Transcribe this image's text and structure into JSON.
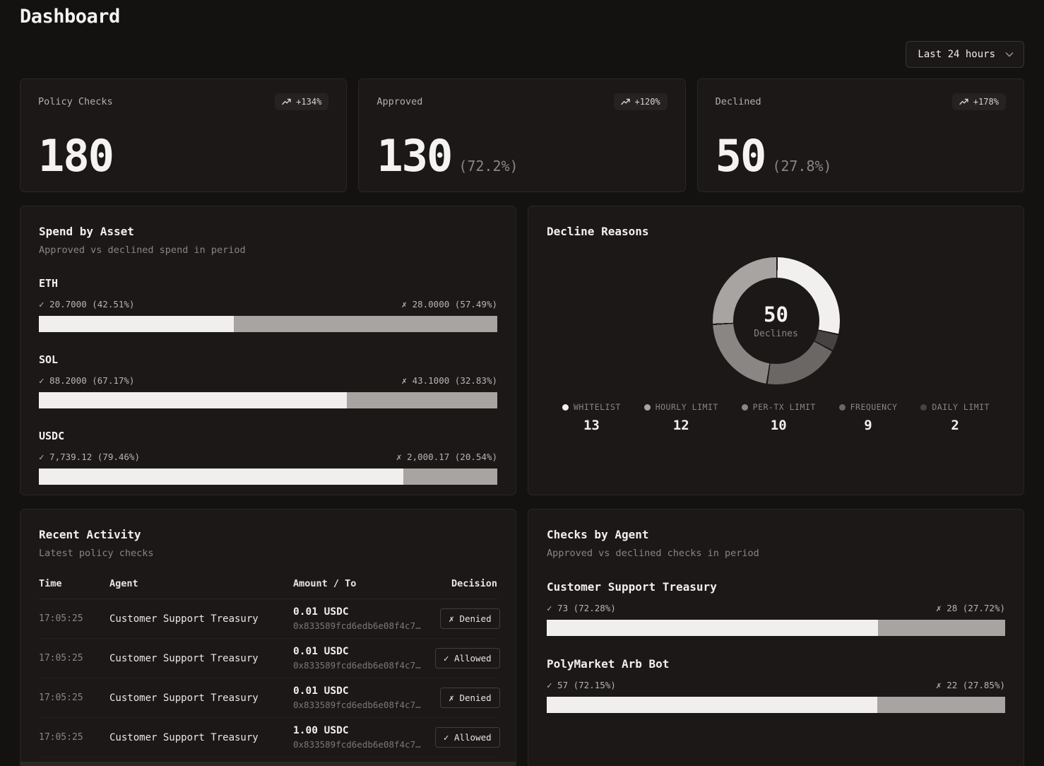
{
  "page": {
    "title": "Dashboard"
  },
  "time_filter": {
    "value": "Last 24 hours"
  },
  "stats": [
    {
      "label": "Policy Checks",
      "value": "180",
      "pct": "",
      "delta": "+134%"
    },
    {
      "label": "Approved",
      "value": "130",
      "pct": "(72.2%)",
      "delta": "+120%"
    },
    {
      "label": "Declined",
      "value": "50",
      "pct": "(27.8%)",
      "delta": "+178%"
    }
  ],
  "spend_by_asset": {
    "title": "Spend by Asset",
    "subtitle": "Approved vs declined spend in period",
    "assets": [
      {
        "name": "ETH",
        "approved_label": "✓ 20.7000 (42.51%)",
        "declined_label": "✗ 28.0000 (57.49%)",
        "approved_pct": 42.51
      },
      {
        "name": "SOL",
        "approved_label": "✓ 88.2000 (67.17%)",
        "declined_label": "✗ 43.1000 (32.83%)",
        "approved_pct": 67.17
      },
      {
        "name": "USDC",
        "approved_label": "✓ 7,739.12 (79.46%)",
        "declined_label": "✗ 2,000.17 (20.54%)",
        "approved_pct": 79.46
      }
    ]
  },
  "decline_reasons": {
    "title": "Decline Reasons",
    "center_value": "50",
    "center_label": "Declines",
    "segments": [
      {
        "label": "WHITELIST",
        "value": 13,
        "color": "#f2f0ee"
      },
      {
        "label": "HOURLY LIMIT",
        "value": 12,
        "color": "#a8a4a1"
      },
      {
        "label": "PER-TX LIMIT",
        "value": 10,
        "color": "#8a8683"
      },
      {
        "label": "FREQUENCY",
        "value": 9,
        "color": "#6b6764"
      },
      {
        "label": "DAILY LIMIT",
        "value": 2,
        "color": "#474343"
      }
    ]
  },
  "recent_activity": {
    "title": "Recent Activity",
    "subtitle": "Latest policy checks",
    "columns": [
      "Time",
      "Agent",
      "Amount / To",
      "Decision"
    ],
    "rows": [
      {
        "time": "17:05:25",
        "agent": "Customer Support Treasury",
        "amount": "0.01 USDC",
        "to": "0x833589fcd6edb6e08f4c7…",
        "badge": "✗ Denied"
      },
      {
        "time": "17:05:25",
        "agent": "Customer Support Treasury",
        "amount": "0.01 USDC",
        "to": "0x833589fcd6edb6e08f4c7…",
        "badge": "✓ Allowed"
      },
      {
        "time": "17:05:25",
        "agent": "Customer Support Treasury",
        "amount": "0.01 USDC",
        "to": "0x833589fcd6edb6e08f4c7…",
        "badge": "✗ Denied"
      },
      {
        "time": "17:05:25",
        "agent": "Customer Support Treasury",
        "amount": "1.00 USDC",
        "to": "0x833589fcd6edb6e08f4c7…",
        "badge": "✓ Allowed"
      }
    ]
  },
  "checks_by_agent": {
    "title": "Checks by Agent",
    "subtitle": "Approved vs declined checks in period",
    "agents": [
      {
        "name": "Customer Support Treasury",
        "approved_label": "✓ 73 (72.28%)",
        "declined_label": "✗ 28 (27.72%)",
        "approved_pct": 72.28
      },
      {
        "name": "PolyMarket Arb Bot",
        "approved_label": "✓ 57 (72.15%)",
        "declined_label": "✗ 22 (27.85%)",
        "approved_pct": 72.15
      }
    ]
  },
  "chart_data": [
    {
      "type": "bar",
      "title": "Spend by Asset",
      "categories": [
        "ETH",
        "SOL",
        "USDC"
      ],
      "series": [
        {
          "name": "Approved",
          "values": [
            20.7,
            88.2,
            7739.12
          ],
          "pcts": [
            42.51,
            67.17,
            79.46
          ]
        },
        {
          "name": "Declined",
          "values": [
            28.0,
            43.1,
            2000.17
          ],
          "pcts": [
            57.49,
            32.83,
            20.54
          ]
        }
      ],
      "layout": "horizontal-stacked-100pct"
    },
    {
      "type": "pie",
      "title": "Decline Reasons",
      "categories": [
        "WHITELIST",
        "HOURLY LIMIT",
        "PER-TX LIMIT",
        "FREQUENCY",
        "DAILY LIMIT"
      ],
      "values": [
        13,
        12,
        10,
        9,
        2
      ],
      "center_value": 50,
      "center_label": "Declines",
      "legend_position": "bottom"
    },
    {
      "type": "bar",
      "title": "Checks by Agent",
      "categories": [
        "Customer Support Treasury",
        "PolyMarket Arb Bot"
      ],
      "series": [
        {
          "name": "Approved",
          "values": [
            73,
            57
          ],
          "pcts": [
            72.28,
            72.15
          ]
        },
        {
          "name": "Declined",
          "values": [
            28,
            22
          ],
          "pcts": [
            27.72,
            27.85
          ]
        }
      ],
      "layout": "horizontal-stacked-100pct"
    }
  ]
}
